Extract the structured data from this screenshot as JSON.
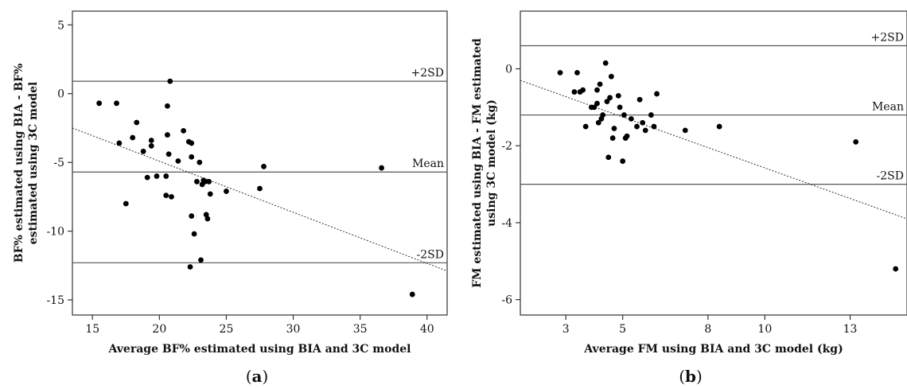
{
  "chart_data": [
    {
      "type": "scatter",
      "panel_label": "(a)",
      "xlabel": "Average BF% estimated using BIA and 3C model",
      "ylabel": [
        "BF% estimated using BIA - BF%",
        "estimated using 3C model"
      ],
      "xlim": [
        13.5,
        41.5
      ],
      "ylim": [
        -16.1,
        6
      ],
      "xticks": [
        15,
        20,
        25,
        30,
        35,
        40
      ],
      "yticks": [
        5,
        0,
        -5,
        -10,
        -15
      ],
      "reference_lines": [
        {
          "label": "+2SD",
          "y": 0.9
        },
        {
          "label": "Mean",
          "y": -5.7
        },
        {
          "label": "-2SD",
          "y": -12.3
        }
      ],
      "trend_line": {
        "style": "dotted",
        "points": [
          [
            13.5,
            -2.5
          ],
          [
            41.5,
            -12.9
          ]
        ]
      },
      "points": [
        [
          15.5,
          -0.7
        ],
        [
          16.8,
          -0.7
        ],
        [
          17.0,
          -3.6
        ],
        [
          17.5,
          -8.0
        ],
        [
          18.0,
          -3.2
        ],
        [
          18.3,
          -2.1
        ],
        [
          18.8,
          -4.2
        ],
        [
          19.1,
          -6.1
        ],
        [
          19.4,
          -3.4
        ],
        [
          19.4,
          -3.8
        ],
        [
          19.8,
          -6.0
        ],
        [
          20.5,
          -6.0
        ],
        [
          20.5,
          -7.4
        ],
        [
          20.6,
          -0.9
        ],
        [
          20.6,
          -3.0
        ],
        [
          20.7,
          -4.4
        ],
        [
          20.8,
          0.9
        ],
        [
          20.9,
          -7.5
        ],
        [
          21.4,
          -4.9
        ],
        [
          21.8,
          -2.7
        ],
        [
          22.2,
          -3.5
        ],
        [
          22.3,
          -12.6
        ],
        [
          22.4,
          -3.6
        ],
        [
          22.4,
          -4.6
        ],
        [
          22.4,
          -8.9
        ],
        [
          22.6,
          -10.2
        ],
        [
          22.8,
          -6.4
        ],
        [
          23.0,
          -5.0
        ],
        [
          23.1,
          -12.1
        ],
        [
          23.2,
          -6.6
        ],
        [
          23.3,
          -6.3
        ],
        [
          23.4,
          -6.4
        ],
        [
          23.5,
          -8.8
        ],
        [
          23.6,
          -9.1
        ],
        [
          23.7,
          -6.4
        ],
        [
          23.8,
          -7.3
        ],
        [
          25.0,
          -7.1
        ],
        [
          27.5,
          -6.9
        ],
        [
          27.8,
          -5.3
        ],
        [
          36.6,
          -5.4
        ],
        [
          38.9,
          -14.6
        ]
      ]
    },
    {
      "type": "scatter",
      "panel_label": "(b)",
      "xlabel": "Average FM using BIA and 3C model (kg)",
      "ylabel": [
        "FM estimated using BIA - FM estimated",
        "using 3C model (kg)"
      ],
      "xlim": [
        1.4,
        15
      ],
      "ylim": [
        -6.4,
        1.5
      ],
      "xticks": [
        3,
        5,
        8,
        10,
        13
      ],
      "yticks": [
        0,
        -2,
        -4,
        -6
      ],
      "reference_lines": [
        {
          "label": "+2SD",
          "y": 0.6
        },
        {
          "label": "Mean",
          "y": -1.2
        },
        {
          "label": "-2SD",
          "y": -3.0
        }
      ],
      "trend_line": {
        "style": "dotted",
        "points": [
          [
            1.4,
            -0.3
          ],
          [
            15,
            -3.9
          ]
        ]
      },
      "points": [
        [
          2.8,
          -0.1
        ],
        [
          3.3,
          -0.6
        ],
        [
          3.4,
          -0.1
        ],
        [
          3.5,
          -0.6
        ],
        [
          3.6,
          -0.55
        ],
        [
          3.7,
          -1.5
        ],
        [
          3.9,
          -1.0
        ],
        [
          4.0,
          -1.0
        ],
        [
          4.1,
          -0.9
        ],
        [
          4.1,
          -0.55
        ],
        [
          4.15,
          -1.4
        ],
        [
          4.2,
          -0.4
        ],
        [
          4.25,
          -1.3
        ],
        [
          4.3,
          -1.2
        ],
        [
          4.4,
          0.15
        ],
        [
          4.45,
          -0.85
        ],
        [
          4.5,
          -2.3
        ],
        [
          4.55,
          -0.75
        ],
        [
          4.6,
          -0.2
        ],
        [
          4.65,
          -1.8
        ],
        [
          4.7,
          -1.55
        ],
        [
          4.85,
          -0.7
        ],
        [
          4.9,
          -1.0
        ],
        [
          5.0,
          -2.4
        ],
        [
          5.05,
          -1.2
        ],
        [
          5.1,
          -1.8
        ],
        [
          5.15,
          -1.75
        ],
        [
          5.3,
          -1.3
        ],
        [
          5.5,
          -1.5
        ],
        [
          5.6,
          -0.8
        ],
        [
          5.7,
          -1.4
        ],
        [
          5.8,
          -1.6
        ],
        [
          6.0,
          -1.2
        ],
        [
          6.1,
          -1.5
        ],
        [
          6.2,
          -0.65
        ],
        [
          7.2,
          -1.6
        ],
        [
          8.4,
          -1.5
        ],
        [
          13.2,
          -1.9
        ],
        [
          14.6,
          -5.2
        ]
      ]
    }
  ]
}
